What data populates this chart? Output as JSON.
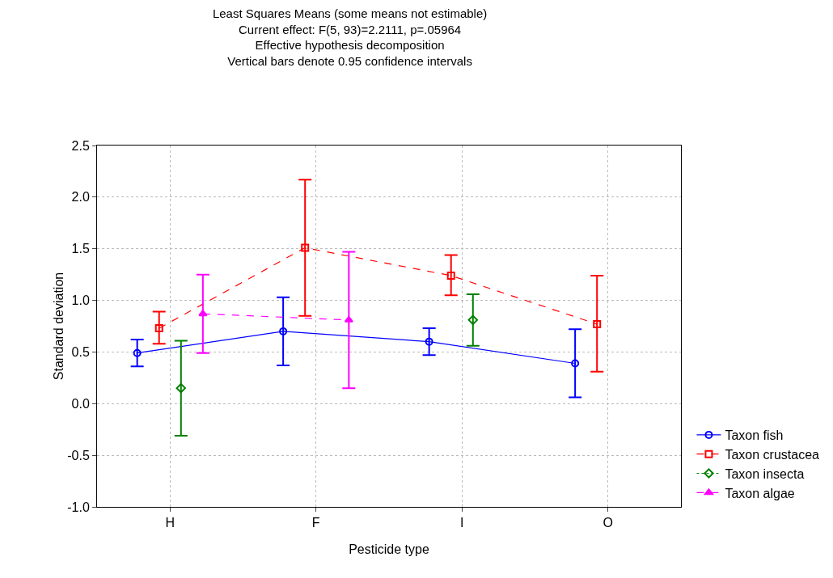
{
  "chart_data": {
    "type": "line",
    "title": "Least Squares Means (some means not estimable)\nCurrent effect: F(5, 93)=2.2111, p=.05964\nEffective hypothesis decomposition\nVertical bars denote 0.95 confidence intervals",
    "xlabel": "Pesticide type",
    "ylabel": "Standard deviation",
    "categories": [
      "H",
      "F",
      "I",
      "O"
    ],
    "series": [
      {
        "name": "Taxon fish",
        "color": "#0000ff",
        "marker": "circle",
        "line_style": "solid",
        "values": [
          0.49,
          0.7,
          0.6,
          0.39
        ],
        "errors": [
          [
            0.36,
            0.62
          ],
          [
            0.37,
            1.03
          ],
          [
            0.47,
            0.73
          ],
          [
            0.06,
            0.72
          ]
        ]
      },
      {
        "name": "Taxon crustacea",
        "color": "#ff0000",
        "marker": "square",
        "line_style": "dashed",
        "values": [
          0.73,
          1.51,
          1.24,
          0.77
        ],
        "errors": [
          [
            0.58,
            0.89
          ],
          [
            0.85,
            2.17
          ],
          [
            1.05,
            1.44
          ],
          [
            0.31,
            1.24
          ]
        ]
      },
      {
        "name": "Taxon insecta",
        "color": "#008000",
        "marker": "diamond",
        "line_style": "dotted",
        "values": [
          0.15,
          null,
          0.81,
          null
        ],
        "errors": [
          [
            -0.31,
            0.61
          ],
          null,
          [
            0.56,
            1.06
          ],
          null
        ]
      },
      {
        "name": "Taxon algae",
        "color": "#ff00ff",
        "marker": "triangle",
        "line_style": "dashed",
        "values": [
          0.87,
          0.81,
          null,
          null
        ],
        "errors": [
          [
            0.49,
            1.25
          ],
          [
            0.15,
            1.47
          ],
          null,
          null
        ]
      }
    ],
    "ylim": [
      -1.0,
      2.5
    ],
    "yticks": [
      {
        "value": -1,
        "label": "-1.0"
      },
      {
        "value": -0.5,
        "label": "-0.5"
      },
      {
        "value": 0,
        "label": "0.0"
      },
      {
        "value": 0.5,
        "label": "0.5"
      },
      {
        "value": 1,
        "label": "1.0"
      },
      {
        "value": 1.5,
        "label": "1.5"
      },
      {
        "value": 2,
        "label": "2.0"
      },
      {
        "value": 2.5,
        "label": "2.5"
      }
    ],
    "grid": true,
    "legend": "right"
  }
}
